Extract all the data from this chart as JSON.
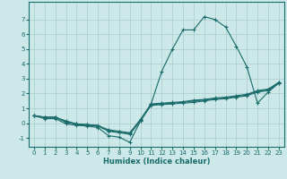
{
  "xlabel": "Humidex (Indice chaleur)",
  "bg_color": "#cce8e8",
  "grid_color": "#aacccc",
  "line_color": "#1a6b6b",
  "xlim": [
    -0.5,
    23.5
  ],
  "ylim": [
    -1.6,
    8.2
  ],
  "xticks": [
    0,
    1,
    2,
    3,
    4,
    5,
    6,
    7,
    8,
    9,
    10,
    11,
    12,
    13,
    14,
    15,
    16,
    17,
    18,
    19,
    20,
    21,
    22,
    23
  ],
  "yticks": [
    -1,
    0,
    1,
    2,
    3,
    4,
    5,
    6,
    7
  ],
  "line1_x": [
    0,
    1,
    2,
    3,
    4,
    5,
    6,
    7,
    8,
    9,
    10,
    11,
    12,
    13,
    14,
    15,
    16,
    17,
    18,
    19,
    20,
    21,
    22,
    23
  ],
  "line1_y": [
    0.5,
    0.4,
    0.4,
    0.1,
    -0.1,
    -0.15,
    -0.2,
    -0.55,
    -0.65,
    -0.75,
    0.15,
    1.2,
    1.25,
    1.3,
    1.35,
    1.4,
    1.5,
    1.6,
    1.65,
    1.75,
    1.85,
    2.1,
    2.2,
    2.7
  ],
  "line2_x": [
    0,
    1,
    2,
    3,
    4,
    5,
    6,
    7,
    8,
    9,
    10,
    11,
    12,
    13,
    14,
    15,
    16,
    17,
    18,
    19,
    20,
    21,
    22,
    23
  ],
  "line2_y": [
    0.5,
    0.4,
    0.4,
    0.05,
    -0.05,
    -0.1,
    -0.15,
    -0.5,
    -0.6,
    -0.7,
    0.2,
    1.25,
    1.3,
    1.35,
    1.4,
    1.5,
    1.55,
    1.65,
    1.7,
    1.8,
    1.9,
    2.15,
    2.25,
    2.75
  ],
  "line3_x": [
    0,
    1,
    2,
    3,
    4,
    5,
    6,
    7,
    8,
    9,
    10,
    11,
    12,
    13,
    14,
    15,
    16,
    17,
    18,
    19,
    20,
    21,
    22,
    23
  ],
  "line3_y": [
    0.5,
    0.4,
    0.4,
    0.15,
    -0.05,
    -0.1,
    -0.18,
    -0.45,
    -0.55,
    -0.65,
    0.25,
    1.3,
    1.35,
    1.4,
    1.45,
    1.55,
    1.6,
    1.7,
    1.75,
    1.85,
    1.95,
    2.2,
    2.3,
    2.75
  ],
  "curve_x": [
    0,
    1,
    2,
    3,
    4,
    5,
    6,
    7,
    8,
    9,
    10,
    11,
    12,
    13,
    14,
    15,
    16,
    17,
    18,
    19,
    20,
    21,
    22,
    23
  ],
  "curve_y": [
    0.5,
    0.3,
    0.3,
    -0.05,
    -0.15,
    -0.2,
    -0.3,
    -0.85,
    -0.95,
    -1.3,
    0.15,
    1.3,
    3.5,
    5.0,
    6.3,
    6.3,
    7.2,
    7.0,
    6.5,
    5.2,
    3.8,
    1.35,
    2.1,
    2.7
  ]
}
